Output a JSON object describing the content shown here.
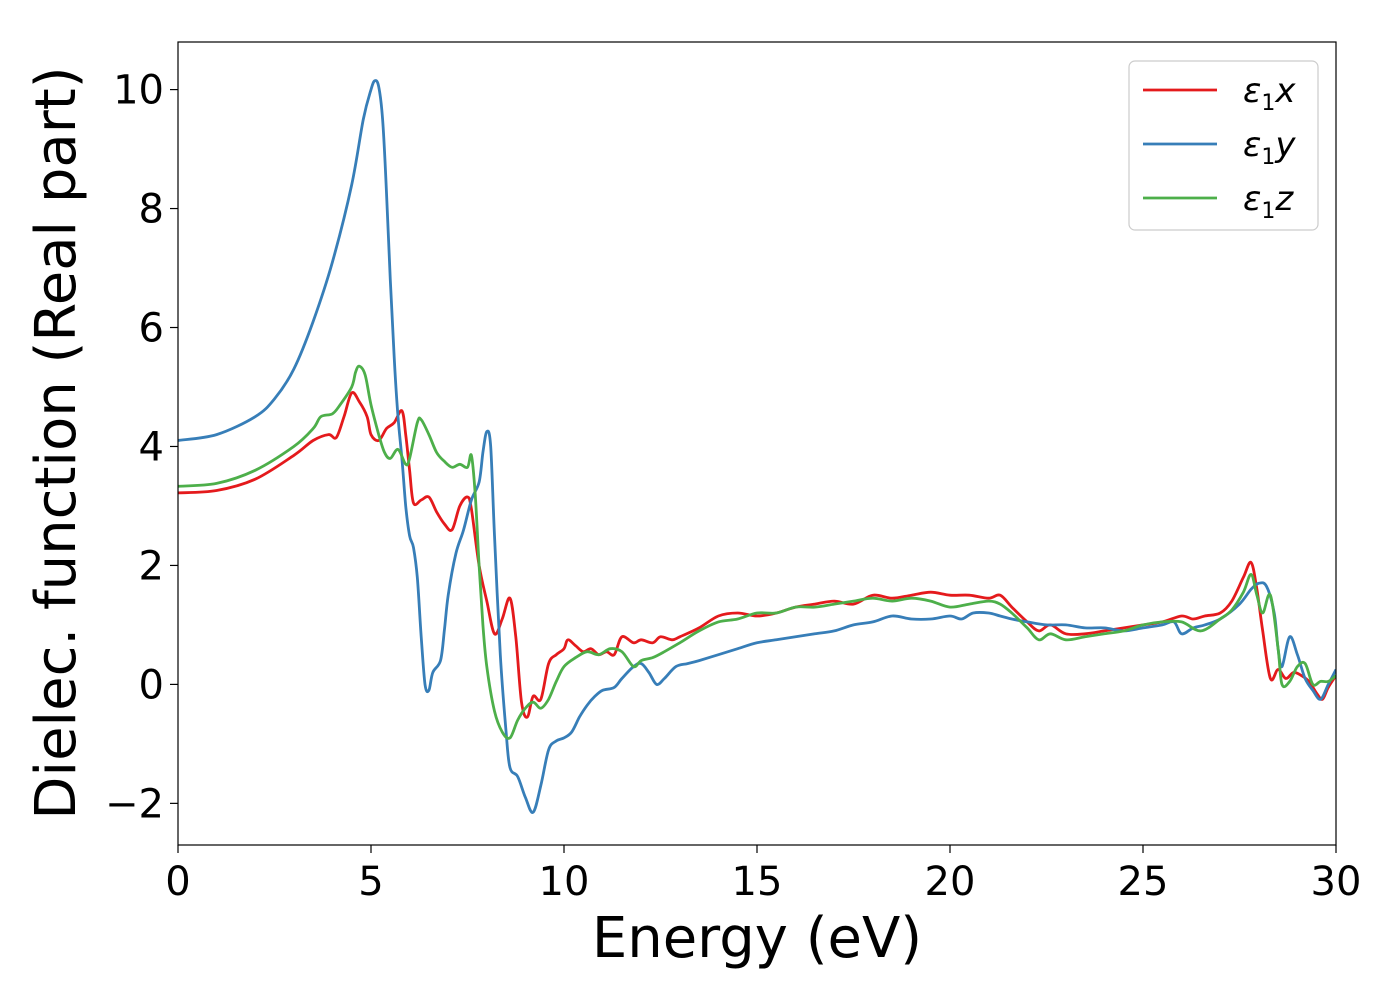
{
  "chart_data": {
    "type": "line",
    "xlabel": "Energy (eV)",
    "ylabel": "Dielec. function (Real part)",
    "xlim": [
      0,
      30
    ],
    "ylim": [
      -2.7,
      10.8
    ],
    "xticks": [
      0,
      5,
      10,
      15,
      20,
      25,
      30
    ],
    "yticks": [
      -2,
      0,
      2,
      4,
      6,
      8,
      10
    ],
    "grid": false,
    "legend_position": "top-right",
    "series": [
      {
        "name": "ε1x",
        "legend": {
          "base": "ε",
          "sub": "1",
          "tail": "x"
        },
        "color": "#e41a1c",
        "points": [
          [
            0,
            3.22
          ],
          [
            1,
            3.26
          ],
          [
            2,
            3.45
          ],
          [
            3,
            3.85
          ],
          [
            3.5,
            4.1
          ],
          [
            3.9,
            4.2
          ],
          [
            4.1,
            4.15
          ],
          [
            4.3,
            4.5
          ],
          [
            4.5,
            4.9
          ],
          [
            4.7,
            4.75
          ],
          [
            4.9,
            4.5
          ],
          [
            5.0,
            4.2
          ],
          [
            5.2,
            4.1
          ],
          [
            5.4,
            4.3
          ],
          [
            5.6,
            4.4
          ],
          [
            5.8,
            4.6
          ],
          [
            5.9,
            4.2
          ],
          [
            6.0,
            3.6
          ],
          [
            6.1,
            3.05
          ],
          [
            6.3,
            3.1
          ],
          [
            6.5,
            3.15
          ],
          [
            6.7,
            2.9
          ],
          [
            6.9,
            2.7
          ],
          [
            7.1,
            2.6
          ],
          [
            7.3,
            3.0
          ],
          [
            7.5,
            3.15
          ],
          [
            7.6,
            2.95
          ],
          [
            7.8,
            2.0
          ],
          [
            8.0,
            1.4
          ],
          [
            8.2,
            0.85
          ],
          [
            8.4,
            1.1
          ],
          [
            8.6,
            1.45
          ],
          [
            8.75,
            0.8
          ],
          [
            8.9,
            -0.3
          ],
          [
            9.05,
            -0.55
          ],
          [
            9.2,
            -0.2
          ],
          [
            9.4,
            -0.25
          ],
          [
            9.6,
            0.35
          ],
          [
            9.8,
            0.5
          ],
          [
            10.0,
            0.6
          ],
          [
            10.1,
            0.75
          ],
          [
            10.3,
            0.65
          ],
          [
            10.5,
            0.55
          ],
          [
            10.7,
            0.6
          ],
          [
            10.9,
            0.5
          ],
          [
            11.1,
            0.55
          ],
          [
            11.3,
            0.5
          ],
          [
            11.5,
            0.8
          ],
          [
            11.8,
            0.7
          ],
          [
            12.0,
            0.75
          ],
          [
            12.3,
            0.7
          ],
          [
            12.5,
            0.8
          ],
          [
            12.8,
            0.75
          ],
          [
            13.0,
            0.8
          ],
          [
            13.5,
            0.95
          ],
          [
            14.0,
            1.15
          ],
          [
            14.5,
            1.2
          ],
          [
            15.0,
            1.15
          ],
          [
            15.5,
            1.2
          ],
          [
            16.0,
            1.3
          ],
          [
            16.5,
            1.35
          ],
          [
            17.0,
            1.4
          ],
          [
            17.5,
            1.35
          ],
          [
            18.0,
            1.5
          ],
          [
            18.5,
            1.45
          ],
          [
            19.0,
            1.5
          ],
          [
            19.5,
            1.55
          ],
          [
            20.0,
            1.5
          ],
          [
            20.5,
            1.5
          ],
          [
            21.0,
            1.45
          ],
          [
            21.3,
            1.5
          ],
          [
            21.6,
            1.3
          ],
          [
            22.0,
            1.05
          ],
          [
            22.3,
            0.9
          ],
          [
            22.6,
            1.0
          ],
          [
            23.0,
            0.85
          ],
          [
            23.5,
            0.85
          ],
          [
            24.0,
            0.9
          ],
          [
            24.5,
            0.95
          ],
          [
            25.0,
            1.0
          ],
          [
            25.5,
            1.05
          ],
          [
            26.0,
            1.15
          ],
          [
            26.3,
            1.1
          ],
          [
            26.6,
            1.15
          ],
          [
            27.0,
            1.2
          ],
          [
            27.3,
            1.4
          ],
          [
            27.6,
            1.8
          ],
          [
            27.8,
            2.05
          ],
          [
            27.95,
            1.6
          ],
          [
            28.1,
            0.9
          ],
          [
            28.3,
            0.1
          ],
          [
            28.5,
            0.25
          ],
          [
            28.7,
            0.1
          ],
          [
            28.9,
            0.2
          ],
          [
            29.1,
            0.15
          ],
          [
            29.3,
            0.05
          ],
          [
            29.5,
            -0.15
          ],
          [
            29.65,
            -0.25
          ],
          [
            29.8,
            -0.05
          ],
          [
            30.0,
            0.15
          ]
        ]
      },
      {
        "name": "ε1y",
        "legend": {
          "base": "ε",
          "sub": "1",
          "tail": "y"
        },
        "color": "#377eb8",
        "points": [
          [
            0,
            4.1
          ],
          [
            1,
            4.2
          ],
          [
            2,
            4.5
          ],
          [
            2.5,
            4.8
          ],
          [
            3,
            5.3
          ],
          [
            3.5,
            6.1
          ],
          [
            4,
            7.1
          ],
          [
            4.5,
            8.4
          ],
          [
            4.8,
            9.5
          ],
          [
            5.0,
            10.0
          ],
          [
            5.1,
            10.15
          ],
          [
            5.2,
            10.05
          ],
          [
            5.3,
            9.5
          ],
          [
            5.4,
            8.3
          ],
          [
            5.5,
            6.8
          ],
          [
            5.6,
            5.5
          ],
          [
            5.7,
            4.5
          ],
          [
            5.8,
            3.8
          ],
          [
            5.9,
            3.0
          ],
          [
            6.0,
            2.5
          ],
          [
            6.1,
            2.3
          ],
          [
            6.2,
            1.8
          ],
          [
            6.3,
            0.8
          ],
          [
            6.4,
            0.0
          ],
          [
            6.5,
            -0.1
          ],
          [
            6.6,
            0.2
          ],
          [
            6.8,
            0.4
          ],
          [
            6.9,
            0.9
          ],
          [
            7.0,
            1.5
          ],
          [
            7.2,
            2.2
          ],
          [
            7.4,
            2.6
          ],
          [
            7.6,
            3.1
          ],
          [
            7.8,
            3.4
          ],
          [
            7.9,
            3.9
          ],
          [
            8.0,
            4.25
          ],
          [
            8.1,
            4.0
          ],
          [
            8.2,
            2.5
          ],
          [
            8.35,
            0.5
          ],
          [
            8.5,
            -0.8
          ],
          [
            8.6,
            -1.4
          ],
          [
            8.8,
            -1.55
          ],
          [
            9.0,
            -1.9
          ],
          [
            9.2,
            -2.15
          ],
          [
            9.4,
            -1.7
          ],
          [
            9.6,
            -1.1
          ],
          [
            9.8,
            -0.95
          ],
          [
            10.0,
            -0.9
          ],
          [
            10.2,
            -0.8
          ],
          [
            10.4,
            -0.55
          ],
          [
            10.6,
            -0.35
          ],
          [
            10.8,
            -0.2
          ],
          [
            11.0,
            -0.1
          ],
          [
            11.3,
            -0.05
          ],
          [
            11.5,
            0.1
          ],
          [
            11.8,
            0.3
          ],
          [
            12.0,
            0.35
          ],
          [
            12.2,
            0.2
          ],
          [
            12.4,
            0.0
          ],
          [
            12.6,
            0.1
          ],
          [
            12.9,
            0.3
          ],
          [
            13.2,
            0.35
          ],
          [
            13.5,
            0.4
          ],
          [
            14.0,
            0.5
          ],
          [
            14.5,
            0.6
          ],
          [
            15.0,
            0.7
          ],
          [
            15.5,
            0.75
          ],
          [
            16.0,
            0.8
          ],
          [
            16.5,
            0.85
          ],
          [
            17.0,
            0.9
          ],
          [
            17.5,
            1.0
          ],
          [
            18.0,
            1.05
          ],
          [
            18.5,
            1.15
          ],
          [
            19.0,
            1.1
          ],
          [
            19.5,
            1.1
          ],
          [
            20.0,
            1.15
          ],
          [
            20.3,
            1.1
          ],
          [
            20.6,
            1.2
          ],
          [
            21.0,
            1.2
          ],
          [
            21.3,
            1.15
          ],
          [
            21.6,
            1.1
          ],
          [
            22.0,
            1.05
          ],
          [
            22.5,
            1.0
          ],
          [
            23.0,
            1.0
          ],
          [
            23.5,
            0.95
          ],
          [
            24.0,
            0.95
          ],
          [
            24.5,
            0.9
          ],
          [
            25.0,
            0.95
          ],
          [
            25.5,
            1.0
          ],
          [
            25.8,
            1.05
          ],
          [
            26.0,
            0.85
          ],
          [
            26.3,
            0.95
          ],
          [
            26.6,
            1.0
          ],
          [
            27.0,
            1.1
          ],
          [
            27.5,
            1.35
          ],
          [
            27.8,
            1.6
          ],
          [
            28.0,
            1.7
          ],
          [
            28.2,
            1.65
          ],
          [
            28.4,
            1.2
          ],
          [
            28.5,
            0.6
          ],
          [
            28.6,
            0.3
          ],
          [
            28.8,
            0.8
          ],
          [
            29.0,
            0.5
          ],
          [
            29.2,
            0.1
          ],
          [
            29.4,
            -0.1
          ],
          [
            29.6,
            -0.25
          ],
          [
            29.8,
            0.0
          ],
          [
            30.0,
            0.25
          ]
        ]
      },
      {
        "name": "ε1z",
        "legend": {
          "base": "ε",
          "sub": "1",
          "tail": "z"
        },
        "color": "#4daf4a",
        "points": [
          [
            0,
            3.33
          ],
          [
            1,
            3.38
          ],
          [
            2,
            3.6
          ],
          [
            3,
            4.0
          ],
          [
            3.5,
            4.3
          ],
          [
            3.7,
            4.5
          ],
          [
            4.0,
            4.55
          ],
          [
            4.2,
            4.7
          ],
          [
            4.5,
            5.0
          ],
          [
            4.6,
            5.25
          ],
          [
            4.7,
            5.35
          ],
          [
            4.85,
            5.2
          ],
          [
            5.0,
            4.7
          ],
          [
            5.2,
            4.2
          ],
          [
            5.35,
            3.9
          ],
          [
            5.5,
            3.8
          ],
          [
            5.7,
            3.95
          ],
          [
            5.9,
            3.7
          ],
          [
            6.0,
            3.8
          ],
          [
            6.2,
            4.4
          ],
          [
            6.3,
            4.45
          ],
          [
            6.5,
            4.2
          ],
          [
            6.7,
            3.9
          ],
          [
            6.9,
            3.75
          ],
          [
            7.1,
            3.65
          ],
          [
            7.3,
            3.7
          ],
          [
            7.5,
            3.65
          ],
          [
            7.6,
            3.85
          ],
          [
            7.7,
            3.2
          ],
          [
            7.8,
            2.0
          ],
          [
            7.9,
            1.0
          ],
          [
            8.0,
            0.3
          ],
          [
            8.2,
            -0.45
          ],
          [
            8.4,
            -0.8
          ],
          [
            8.6,
            -0.9
          ],
          [
            8.8,
            -0.6
          ],
          [
            9.0,
            -0.4
          ],
          [
            9.2,
            -0.3
          ],
          [
            9.4,
            -0.4
          ],
          [
            9.6,
            -0.25
          ],
          [
            9.8,
            0.05
          ],
          [
            10.0,
            0.3
          ],
          [
            10.3,
            0.45
          ],
          [
            10.6,
            0.55
          ],
          [
            10.9,
            0.5
          ],
          [
            11.2,
            0.6
          ],
          [
            11.5,
            0.55
          ],
          [
            11.8,
            0.3
          ],
          [
            12.0,
            0.4
          ],
          [
            12.3,
            0.45
          ],
          [
            12.6,
            0.55
          ],
          [
            13.0,
            0.7
          ],
          [
            13.5,
            0.9
          ],
          [
            14.0,
            1.05
          ],
          [
            14.5,
            1.1
          ],
          [
            15.0,
            1.2
          ],
          [
            15.5,
            1.2
          ],
          [
            16.0,
            1.3
          ],
          [
            16.5,
            1.3
          ],
          [
            17.0,
            1.35
          ],
          [
            17.5,
            1.4
          ],
          [
            18.0,
            1.45
          ],
          [
            18.5,
            1.4
          ],
          [
            19.0,
            1.45
          ],
          [
            19.5,
            1.4
          ],
          [
            20.0,
            1.3
          ],
          [
            20.5,
            1.35
          ],
          [
            21.0,
            1.4
          ],
          [
            21.3,
            1.35
          ],
          [
            21.6,
            1.2
          ],
          [
            22.0,
            0.95
          ],
          [
            22.3,
            0.75
          ],
          [
            22.6,
            0.85
          ],
          [
            23.0,
            0.75
          ],
          [
            23.5,
            0.8
          ],
          [
            24.0,
            0.85
          ],
          [
            24.5,
            0.9
          ],
          [
            25.0,
            1.0
          ],
          [
            25.5,
            1.05
          ],
          [
            26.0,
            1.05
          ],
          [
            26.5,
            0.9
          ],
          [
            27.0,
            1.1
          ],
          [
            27.3,
            1.25
          ],
          [
            27.6,
            1.55
          ],
          [
            27.8,
            1.85
          ],
          [
            27.95,
            1.5
          ],
          [
            28.1,
            1.2
          ],
          [
            28.3,
            1.5
          ],
          [
            28.5,
            0.6
          ],
          [
            28.6,
            0.0
          ],
          [
            28.8,
            0.05
          ],
          [
            29.0,
            0.3
          ],
          [
            29.2,
            0.35
          ],
          [
            29.4,
            0.0
          ],
          [
            29.6,
            0.05
          ],
          [
            29.8,
            0.05
          ],
          [
            30.0,
            0.15
          ]
        ]
      }
    ]
  }
}
